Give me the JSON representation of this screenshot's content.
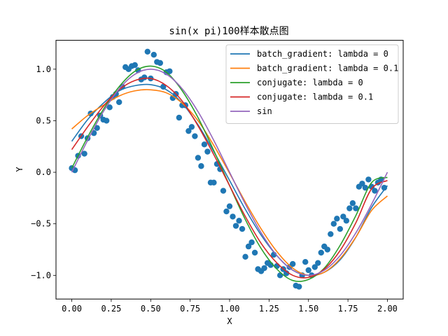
{
  "chart_data": {
    "type": "line",
    "title": "sin(x pi)100样本散点图",
    "xlabel": "X",
    "ylabel": "Y",
    "xlim": [
      -0.1,
      2.1
    ],
    "ylim": [
      -1.23,
      1.28
    ],
    "xticks": [
      0.0,
      0.25,
      0.5,
      0.75,
      1.0,
      1.25,
      1.5,
      1.75,
      2.0
    ],
    "xtick_labels": [
      "0.00",
      "0.25",
      "0.50",
      "0.75",
      "1.00",
      "1.25",
      "1.50",
      "1.75",
      "2.00"
    ],
    "yticks": [
      -1.0,
      -0.5,
      0.0,
      0.5,
      1.0
    ],
    "ytick_labels": [
      "−1.0",
      "−0.5",
      "0.0",
      "0.5",
      "1.0"
    ],
    "grid": false,
    "legend_position": "top-right",
    "x": [
      0.0,
      0.1,
      0.2,
      0.3,
      0.4,
      0.5,
      0.6,
      0.7,
      0.8,
      0.9,
      1.0,
      1.1,
      1.2,
      1.3,
      1.4,
      1.5,
      1.6,
      1.7,
      1.8,
      1.9,
      2.0
    ],
    "series": [
      {
        "name": "batch_gradient: lambda = 0",
        "color": "#1f77b4",
        "values": [
          0.3,
          0.51,
          0.67,
          0.79,
          0.84,
          0.85,
          0.8,
          0.67,
          0.46,
          0.2,
          -0.08,
          -0.36,
          -0.61,
          -0.81,
          -0.95,
          -1.0,
          -0.97,
          -0.85,
          -0.63,
          -0.34,
          -0.13
        ]
      },
      {
        "name": "batch_gradient: lambda = 0.1",
        "color": "#ff7f0e",
        "values": [
          0.42,
          0.55,
          0.65,
          0.74,
          0.79,
          0.8,
          0.77,
          0.67,
          0.5,
          0.26,
          -0.01,
          -0.29,
          -0.55,
          -0.77,
          -0.93,
          -1.0,
          -0.97,
          -0.84,
          -0.63,
          -0.37,
          -0.23
        ]
      },
      {
        "name": "conjugate: lambda = 0",
        "color": "#2ca02c",
        "values": [
          0.04,
          0.34,
          0.61,
          0.83,
          0.98,
          1.03,
          0.97,
          0.79,
          0.53,
          0.21,
          -0.13,
          -0.46,
          -0.74,
          -0.94,
          -1.05,
          -1.04,
          -0.93,
          -0.71,
          -0.42,
          -0.1,
          -0.05
        ]
      },
      {
        "name": "conjugate: lambda = 0.1",
        "color": "#d62728",
        "values": [
          0.22,
          0.44,
          0.64,
          0.8,
          0.89,
          0.91,
          0.84,
          0.69,
          0.45,
          0.17,
          -0.13,
          -0.43,
          -0.69,
          -0.88,
          -1.0,
          -1.02,
          -0.94,
          -0.76,
          -0.49,
          -0.16,
          -0.08
        ]
      },
      {
        "name": "sin",
        "color": "#9467bd",
        "values": [
          0.0,
          0.309,
          0.588,
          0.809,
          0.951,
          1.0,
          0.951,
          0.809,
          0.588,
          0.309,
          0.0,
          -0.309,
          -0.588,
          -0.809,
          -0.951,
          -1.0,
          -0.951,
          -0.809,
          -0.588,
          -0.309,
          0.0
        ]
      }
    ],
    "scatter": {
      "color": "#1f77b4",
      "x": [
        0.0,
        0.02,
        0.04,
        0.06,
        0.08,
        0.1,
        0.12,
        0.14,
        0.16,
        0.18,
        0.2,
        0.22,
        0.24,
        0.26,
        0.28,
        0.3,
        0.32,
        0.34,
        0.36,
        0.38,
        0.4,
        0.42,
        0.44,
        0.46,
        0.48,
        0.5,
        0.52,
        0.54,
        0.56,
        0.58,
        0.6,
        0.62,
        0.64,
        0.66,
        0.68,
        0.7,
        0.72,
        0.74,
        0.76,
        0.78,
        0.8,
        0.82,
        0.84,
        0.86,
        0.88,
        0.9,
        0.92,
        0.94,
        0.96,
        0.98,
        1.0,
        1.02,
        1.04,
        1.06,
        1.08,
        1.1,
        1.12,
        1.14,
        1.16,
        1.18,
        1.2,
        1.22,
        1.24,
        1.26,
        1.28,
        1.3,
        1.32,
        1.34,
        1.36,
        1.38,
        1.4,
        1.42,
        1.44,
        1.46,
        1.48,
        1.5,
        1.52,
        1.54,
        1.56,
        1.58,
        1.6,
        1.62,
        1.64,
        1.66,
        1.68,
        1.7,
        1.72,
        1.74,
        1.76,
        1.78,
        1.8,
        1.82,
        1.84,
        1.86,
        1.88,
        1.9,
        1.92,
        1.94,
        1.96,
        1.98
      ],
      "y": [
        0.04,
        0.02,
        0.16,
        0.35,
        0.18,
        0.33,
        0.57,
        0.38,
        0.43,
        0.55,
        0.51,
        0.5,
        0.63,
        0.73,
        0.76,
        0.68,
        0.83,
        1.02,
        1.0,
        1.03,
        1.04,
        0.99,
        0.9,
        0.92,
        1.17,
        0.91,
        1.14,
        1.07,
        1.06,
        0.83,
        0.97,
        0.98,
        0.72,
        0.76,
        0.53,
        0.65,
        0.65,
        0.4,
        0.44,
        0.35,
        0.14,
        0.06,
        0.27,
        0.2,
        -0.1,
        -0.1,
        0.08,
        0.03,
        -0.18,
        -0.38,
        -0.33,
        -0.43,
        -0.52,
        -0.47,
        -0.55,
        -0.82,
        -0.72,
        -0.68,
        -0.78,
        -0.94,
        -0.96,
        -0.93,
        -0.88,
        -0.9,
        -0.8,
        -0.91,
        -1.0,
        -0.94,
        -0.98,
        -0.92,
        -0.89,
        -1.1,
        -1.11,
        -1.0,
        -0.87,
        -0.95,
        -1.0,
        -0.92,
        -0.88,
        -0.78,
        -0.72,
        -0.75,
        -0.6,
        -0.5,
        -0.45,
        -0.55,
        -0.43,
        -0.47,
        -0.35,
        -0.3,
        -0.35,
        -0.14,
        -0.11,
        -0.15,
        -0.07,
        -0.14,
        -0.18,
        -0.1,
        -0.07,
        -0.15
      ]
    }
  }
}
